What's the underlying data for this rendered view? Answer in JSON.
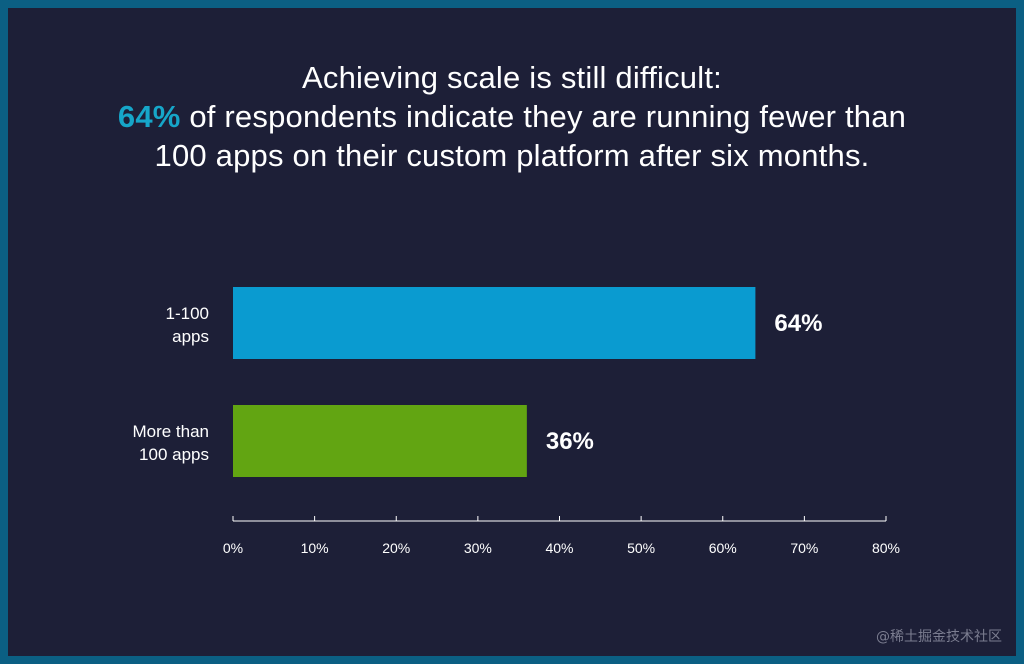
{
  "title": {
    "line1": "Achieving scale is still difficult:",
    "highlight": "64%",
    "line2_rest": " of respondents indicate they are running fewer than",
    "line3": "100 apps on their custom platform after six months."
  },
  "colors": {
    "background": "#1d1f37",
    "frame": "#0b5f83",
    "highlight": "#16a6c9",
    "bar_1": "#0a9bd0",
    "bar_2": "#62a512",
    "axis": "#ffffff"
  },
  "chart_data": {
    "type": "bar",
    "orientation": "horizontal",
    "categories": [
      [
        "1-100",
        "apps"
      ],
      [
        "More than",
        "100 apps"
      ]
    ],
    "values": [
      64,
      36
    ],
    "data_labels": [
      "64%",
      "36%"
    ],
    "bar_colors": [
      "#0a9bd0",
      "#62a512"
    ],
    "xlim": [
      0,
      80
    ],
    "xticks": [
      0,
      10,
      20,
      30,
      40,
      50,
      60,
      70,
      80
    ],
    "xtick_labels": [
      "0%",
      "10%",
      "20%",
      "30%",
      "40%",
      "50%",
      "60%",
      "70%",
      "80%"
    ],
    "grid": false
  },
  "watermark": "@稀土掘金技术社区"
}
